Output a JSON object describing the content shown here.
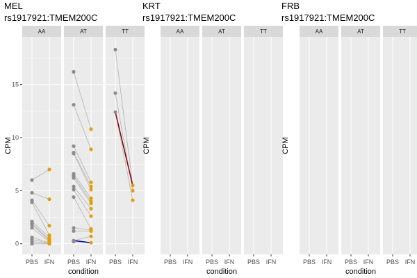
{
  "chart_data": [
    {
      "type": "scatter",
      "title": "MEL",
      "subtitle": "rs1917921:TMEM200C",
      "xlabel": "condition",
      "ylabel": "CPM",
      "x_categories": [
        "PBS",
        "IFN"
      ],
      "facets": [
        "AA",
        "AT",
        "TT"
      ],
      "ylim": [
        -1,
        19.5
      ],
      "yticks": [
        0,
        5,
        10,
        15
      ],
      "grid": true,
      "colors": {
        "panel_bg": "#ebebeb",
        "grid": "#ffffff",
        "strip_bg": "#d9d9d9",
        "pbs_point": "#8c8c8c",
        "ifn_point": "#e69f00",
        "pair_line": "#bdbdbd",
        "up_line": "#8b0000",
        "down_line": "#0000cd"
      },
      "panels": {
        "AA": {
          "PBS": [
            6.0,
            4.8,
            4.1,
            3.9,
            2.1,
            1.9,
            1.8,
            1.5,
            0.6,
            0.4,
            0.2,
            0.0
          ],
          "IFN": [
            7.0,
            4.2,
            1.7,
            0.8,
            0.6,
            0.4,
            0.3,
            0.2,
            0.1,
            0.05,
            0.0,
            0.0
          ]
        },
        "AT": {
          "PBS": [
            16.2,
            13.1,
            9.2,
            8.6,
            8.5,
            6.6,
            6.4,
            6.2,
            5.4,
            5.1,
            4.4,
            1.5,
            1.2,
            0.3,
            0.2
          ],
          "IFN": [
            10.8,
            8.9,
            5.8,
            5.4,
            5.1,
            4.3,
            4.0,
            3.8,
            3.3,
            2.6,
            1.4,
            1.3,
            1.2,
            0.7,
            0.1
          ]
        },
        "TT": {
          "PBS": [
            18.3,
            14.2,
            12.4
          ],
          "IFN": [
            5.5,
            5.0,
            4.1
          ]
        }
      }
    },
    {
      "type": "scatter",
      "title": "KRT",
      "subtitle": "rs1917921:TMEM200C",
      "xlabel": "condition",
      "ylabel": "CPM",
      "x_categories": [
        "PBS",
        "IFN"
      ],
      "facets": [
        "AA",
        "AT",
        "TT"
      ],
      "panels": {}
    },
    {
      "type": "scatter",
      "title": "FRB",
      "subtitle": "rs1917921:TMEM200C",
      "xlabel": "condition",
      "ylabel": "CPM",
      "x_categories": [
        "PBS",
        "IFN"
      ],
      "facets": [
        "AA",
        "AT",
        "TT"
      ],
      "panels": {}
    }
  ]
}
